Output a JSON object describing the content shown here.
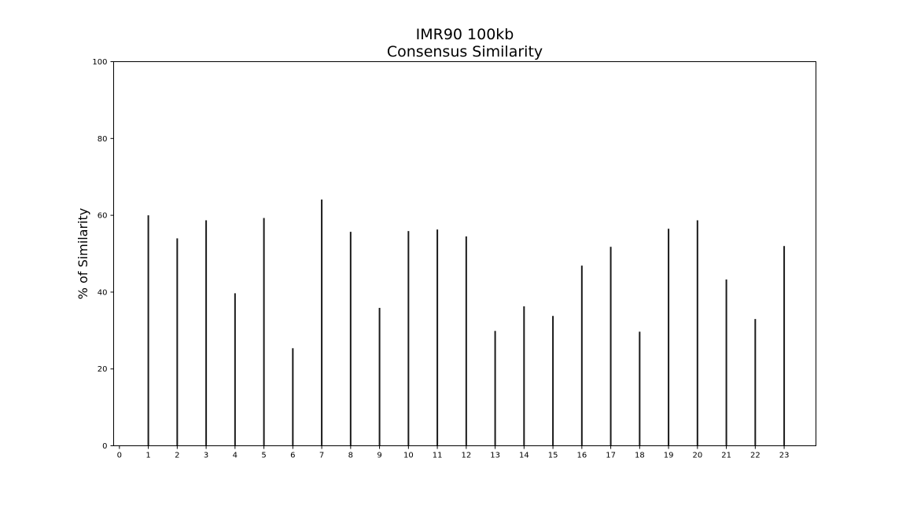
{
  "chart_data": {
    "type": "bar",
    "title": "IMR90 100kb",
    "subtitle": "Consensus Similarity",
    "xlabel": "",
    "ylabel": "% of Similarity",
    "x_ticks": [
      "0",
      "1",
      "2",
      "3",
      "4",
      "5",
      "6",
      "7",
      "8",
      "9",
      "10",
      "11",
      "12",
      "13",
      "14",
      "15",
      "16",
      "17",
      "18",
      "19",
      "20",
      "21",
      "22",
      "23"
    ],
    "y_ticks": [
      "0",
      "20",
      "40",
      "60",
      "80",
      "100"
    ],
    "categories": [
      "1",
      "2",
      "3",
      "4",
      "5",
      "6",
      "7",
      "8",
      "9",
      "10",
      "11",
      "12",
      "13",
      "14",
      "15",
      "16",
      "17",
      "18",
      "19",
      "20",
      "21",
      "22",
      "23"
    ],
    "values": [
      60.0,
      54.0,
      58.7,
      39.7,
      59.3,
      25.4,
      64.1,
      55.7,
      35.9,
      55.9,
      56.3,
      54.5,
      29.9,
      36.3,
      33.8,
      46.9,
      51.8,
      29.7,
      56.5,
      58.7,
      43.3,
      33.0,
      52.0
    ],
    "xlim": [
      -0.2,
      24.1
    ],
    "ylim": [
      0,
      100
    ],
    "bar_color": "#1a1a1a",
    "grid": false
  }
}
